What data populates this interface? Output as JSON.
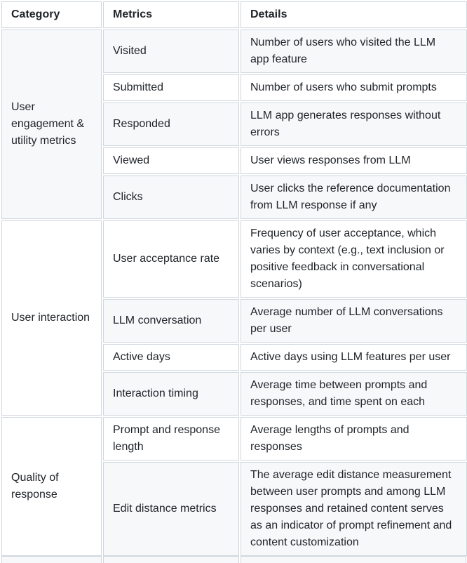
{
  "table": {
    "headers": [
      "Category",
      "Metrics",
      "Details"
    ],
    "groups": [
      {
        "category": "User engagement & utility metrics",
        "rows": [
          {
            "metric": "Visited",
            "detail": "Number of users who visited the LLM app feature"
          },
          {
            "metric": "Submitted",
            "detail": "Number of users who submit prompts"
          },
          {
            "metric": "Responded",
            "detail": "LLM app generates responses without errors"
          },
          {
            "metric": "Viewed",
            "detail": "User views responses from LLM"
          },
          {
            "metric": "Clicks",
            "detail": "User clicks the reference documentation from LLM response if any"
          }
        ]
      },
      {
        "category": "User interaction",
        "rows": [
          {
            "metric": "User acceptance rate",
            "detail": "Frequency of user acceptance, which varies by context (e.g., text inclusion or positive feedback in conversational scenarios)"
          },
          {
            "metric": "LLM conversation",
            "detail": "Average number of LLM conversations per user"
          },
          {
            "metric": "Active days",
            "detail": "Active days using LLM features per user"
          },
          {
            "metric": "Interaction timing",
            "detail": "Average time between prompts and responses, and time spent on each"
          }
        ]
      },
      {
        "category": "Quality of response",
        "rows": [
          {
            "metric": "Prompt and response length",
            "detail": "Average lengths of prompts and responses"
          },
          {
            "metric": "Edit distance metrics",
            "detail": "The average edit distance measurement between user prompts and among LLM responses and retained content serves as an indicator of prompt refinement and content customization"
          }
        ]
      }
    ]
  }
}
